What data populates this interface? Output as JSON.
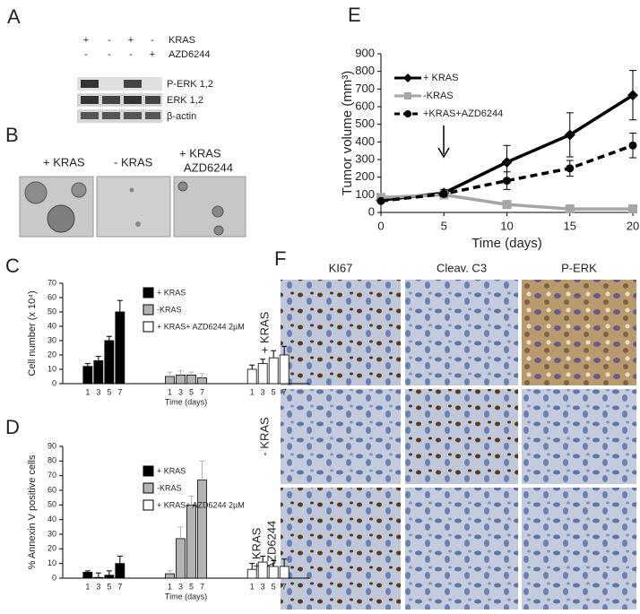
{
  "panel_labels": [
    "A",
    "B",
    "C",
    "D",
    "E",
    "F"
  ],
  "blot": {
    "treatments": [
      {
        "name": "KRAS",
        "lanes": [
          "+",
          "-",
          "+",
          "-"
        ]
      },
      {
        "name": "AZD6244",
        "lanes": [
          "-",
          "-",
          "-",
          "+"
        ]
      }
    ],
    "bands": [
      "P-ERK 1,2",
      "ERK 1,2",
      "β-actin"
    ]
  },
  "colonies": {
    "labels": [
      "+ KRAS",
      "- KRAS",
      "+ KRAS",
      "AZD6244"
    ]
  },
  "ihc": {
    "columns": [
      "KI67",
      "Cleav. C3",
      "P-ERK"
    ],
    "rows": [
      "+ KRAS",
      "- KRAS",
      "+ KRAS",
      "+AZD6244"
    ]
  },
  "chart_data": [
    {
      "type": "bar",
      "ylabel": "Cell number (x 10⁴)",
      "xlabel": "Time (days)",
      "categories": [
        "1",
        "3",
        "5",
        "7"
      ],
      "ylim": [
        0,
        70
      ],
      "yticks": [
        0,
        10,
        20,
        30,
        40,
        50,
        60,
        70
      ],
      "series": [
        {
          "name": "+ KRAS",
          "color": "#000000",
          "values": [
            12,
            16,
            30,
            50
          ],
          "errors": [
            2,
            3,
            3,
            8
          ]
        },
        {
          "name": "-KRAS",
          "color": "#b3b3b3",
          "values": [
            5,
            6,
            6,
            4
          ],
          "errors": [
            3,
            3,
            2,
            3
          ]
        },
        {
          "name": "+ KRAS+ AZD6244 2µM",
          "color": "#ffffff",
          "values": [
            10,
            14,
            18,
            20
          ],
          "errors": [
            3,
            3,
            5,
            6
          ]
        }
      ]
    },
    {
      "type": "bar",
      "ylabel": "% Annexin V positive cells",
      "xlabel": "Time (days)",
      "categories": [
        "1",
        "3",
        "5",
        "7"
      ],
      "ylim": [
        0,
        90
      ],
      "yticks": [
        0,
        10,
        20,
        30,
        40,
        50,
        60,
        70,
        80,
        90
      ],
      "series": [
        {
          "name": "+ KRAS",
          "color": "#000000",
          "values": [
            4,
            0.5,
            2,
            10
          ],
          "errors": [
            1,
            3,
            3,
            5
          ]
        },
        {
          "name": "-KRAS",
          "color": "#b3b3b3",
          "values": [
            3,
            27,
            50,
            67
          ],
          "errors": [
            2,
            8,
            6,
            13
          ]
        },
        {
          "name": "+ KRAS+ AZD6244 2µM",
          "color": "#ffffff",
          "values": [
            6,
            11,
            8,
            8
          ],
          "errors": [
            4,
            4,
            4,
            5
          ]
        }
      ]
    },
    {
      "type": "line",
      "ylabel": "Tumor volume (mm³)",
      "xlabel": "Time (days)",
      "x": [
        0,
        5,
        10,
        15,
        20
      ],
      "xlim": [
        0,
        20
      ],
      "xticks": [
        0,
        5,
        10,
        15,
        20
      ],
      "ylim": [
        0,
        900
      ],
      "yticks": [
        0,
        100,
        200,
        300,
        400,
        500,
        600,
        700,
        800,
        900
      ],
      "series": [
        {
          "name": "+ KRAS",
          "color": "#000000",
          "marker": "diamond",
          "dashed": false,
          "values": [
            70,
            110,
            285,
            440,
            665
          ],
          "errors": [
            10,
            20,
            95,
            125,
            140
          ]
        },
        {
          "name": "-KRAS",
          "color": "#a6a6a6",
          "marker": "square",
          "dashed": false,
          "values": [
            85,
            100,
            45,
            20,
            20
          ],
          "errors": [
            5,
            10,
            10,
            5,
            5
          ]
        },
        {
          "name": "+KRAS+AZD6244",
          "color": "#000000",
          "marker": "circle",
          "dashed": true,
          "values": [
            65,
            105,
            180,
            250,
            380
          ],
          "errors": [
            5,
            15,
            50,
            45,
            70
          ]
        }
      ]
    }
  ]
}
